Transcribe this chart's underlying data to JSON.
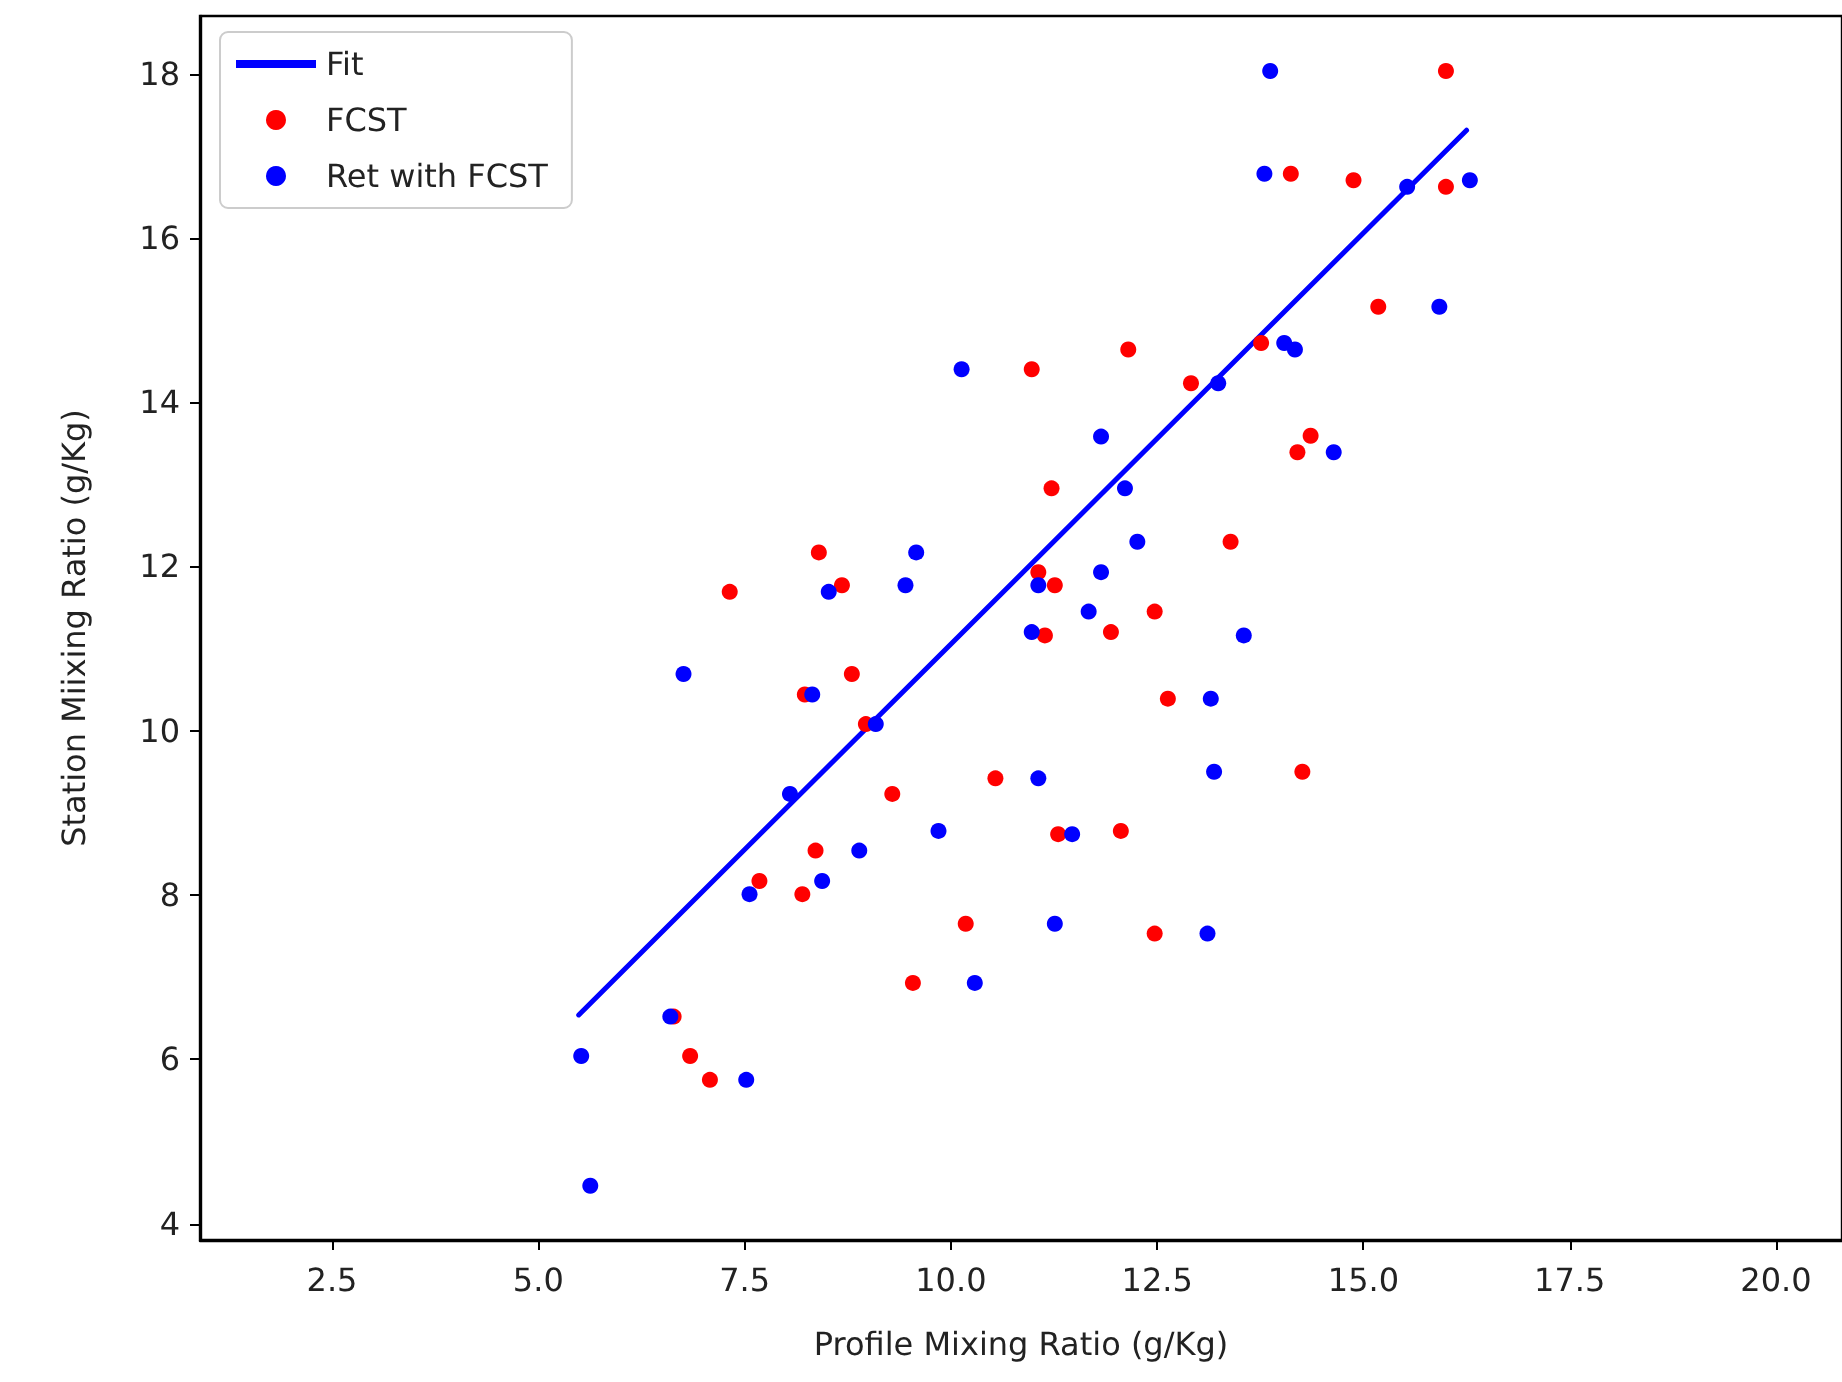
{
  "chart_data": {
    "type": "scatter",
    "xlabel": "Profile Mixing Ratio (g/Kg)",
    "ylabel": "Station Miixing Ratio (g/Kg)",
    "xlim": [
      0.9,
      20.8
    ],
    "xticks": [
      2.5,
      {
        "value": 5,
        "label": "5.0"
      },
      7.5,
      {
        "value": 10,
        "label": "10.0"
      },
      12.5,
      {
        "value": 15,
        "label": "15.0"
      },
      17.5,
      {
        "value": 20,
        "label": "20.0"
      }
    ],
    "ylim": [
      3.8,
      18.7
    ],
    "yticks": [
      4,
      6,
      8,
      10,
      12,
      14,
      16,
      18
    ],
    "grid": false,
    "legend": "top left",
    "marker": "circle",
    "series": [
      {
        "name": "Fit",
        "type": "line",
        "color": "#0000ff",
        "line_style": "solid",
        "marker": "none",
        "x": [
          5.49,
          16.25
        ],
        "values": [
          6.54,
          17.31
        ]
      },
      {
        "name": "FCST",
        "type": "scatter",
        "color": "#ff0000",
        "x": [
          16.0,
          14.12,
          14.88,
          16.0,
          15.18,
          13.76,
          12.15,
          10.98,
          12.91,
          14.36,
          14.2,
          11.22,
          13.39,
          8.4,
          11.06,
          8.68,
          11.26,
          7.32,
          12.47,
          11.94,
          11.14,
          8.8,
          8.23,
          12.63,
          8.97,
          14.26,
          10.54,
          9.29,
          12.06,
          11.3,
          8.36,
          7.68,
          8.2,
          10.18,
          12.47,
          9.54,
          6.64,
          6.84,
          7.08
        ],
        "values": [
          18.03,
          16.78,
          16.7,
          16.62,
          15.16,
          14.72,
          14.64,
          14.4,
          14.23,
          13.59,
          13.39,
          12.95,
          12.3,
          12.17,
          11.93,
          11.77,
          11.77,
          11.69,
          11.45,
          11.2,
          11.16,
          10.69,
          10.44,
          10.39,
          10.08,
          9.5,
          9.42,
          9.23,
          8.78,
          8.74,
          8.54,
          8.17,
          8.01,
          7.65,
          7.53,
          6.93,
          6.52,
          6.04,
          5.75
        ]
      },
      {
        "name": "Ret with FCST",
        "type": "scatter",
        "color": "#0000ff",
        "x": [
          13.87,
          13.8,
          16.29,
          15.53,
          15.92,
          14.04,
          14.17,
          10.13,
          13.24,
          11.82,
          14.64,
          12.11,
          12.26,
          9.58,
          11.82,
          9.45,
          11.06,
          8.52,
          11.67,
          10.98,
          13.55,
          6.76,
          8.32,
          13.15,
          9.09,
          13.19,
          11.06,
          8.05,
          9.85,
          11.47,
          8.89,
          8.44,
          7.56,
          11.26,
          13.11,
          10.29,
          6.6,
          5.52,
          7.52,
          5.63
        ],
        "values": [
          18.03,
          16.78,
          16.7,
          16.62,
          15.16,
          14.72,
          14.64,
          14.4,
          14.23,
          13.58,
          13.39,
          12.95,
          12.3,
          12.17,
          11.93,
          11.77,
          11.77,
          11.69,
          11.45,
          11.2,
          11.16,
          10.69,
          10.44,
          10.39,
          10.08,
          9.5,
          9.42,
          9.23,
          8.78,
          8.74,
          8.54,
          8.17,
          8.01,
          7.65,
          7.53,
          6.93,
          6.52,
          6.04,
          5.75,
          4.46
        ]
      }
    ]
  }
}
